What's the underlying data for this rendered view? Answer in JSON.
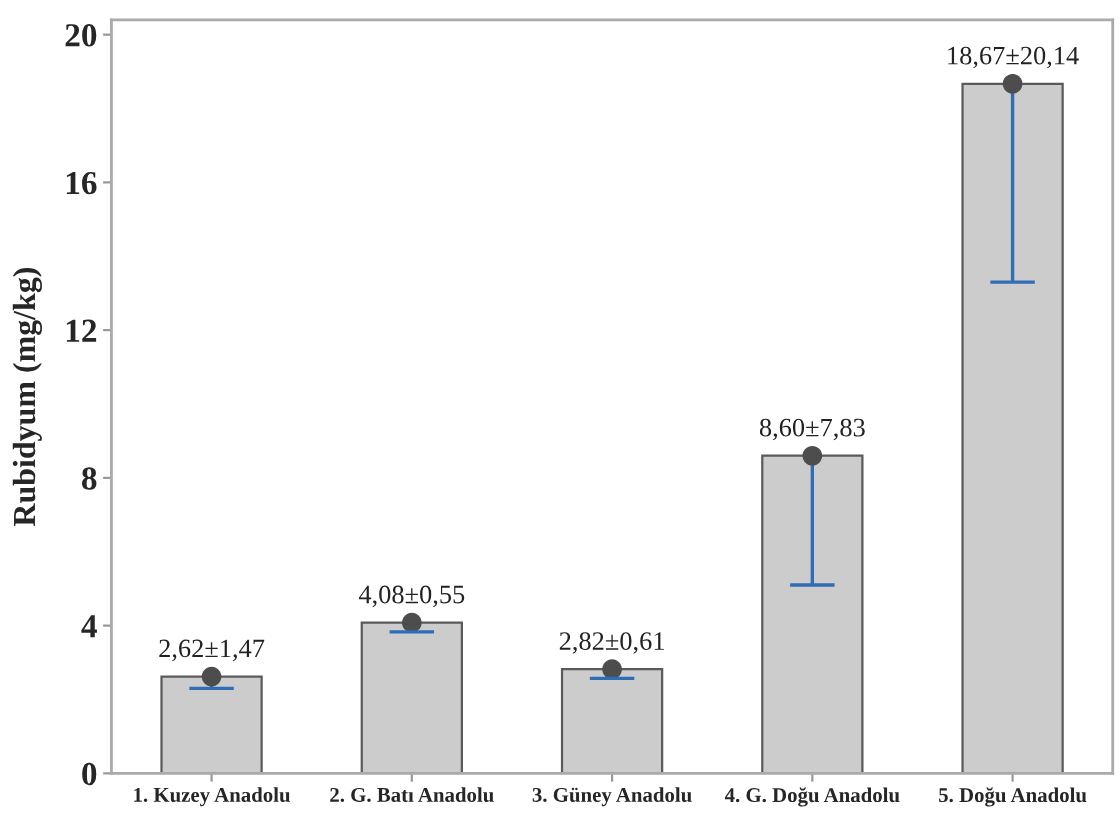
{
  "chart_data": {
    "type": "bar",
    "ylabel": "Rubidyum (mg/kg)",
    "categories": [
      "1. Kuzey Anadolu",
      "2. G. Batı Anadolu",
      "3. Güney Anadolu",
      "4. G. Doğu Anadolu",
      "5. Doğu Anadolu"
    ],
    "ylim": [
      0,
      20.4
    ],
    "yticks": [
      0,
      4,
      8,
      12,
      16,
      20
    ],
    "series": [
      {
        "color": "#cccccc",
        "values": [
          2.62,
          4.08,
          2.82,
          8.6,
          18.67
        ],
        "errors": [
          [
            2.3,
            2.62
          ],
          [
            3.83,
            4.08
          ],
          [
            2.57,
            2.82
          ],
          [
            5.1,
            8.6
          ],
          [
            13.3,
            18.67
          ]
        ],
        "value_labels": [
          "2,62±1,47",
          "4,08±0,55",
          "2,82±0,61",
          "8,60±7,83",
          "18,67±20,14"
        ]
      },
      {
        "type": "scatter",
        "x": [
          "1. Kuzey Anadolu",
          "2. G. Batı Anadolu",
          "3. Güney Anadolu",
          "4. G. Doğu Anadolu",
          "5. Doğu Anadolu"
        ],
        "values": [
          2.62,
          4.08,
          2.82,
          8.6,
          18.67
        ],
        "color": "#4d4d4d",
        "marker": "circle"
      }
    ]
  }
}
